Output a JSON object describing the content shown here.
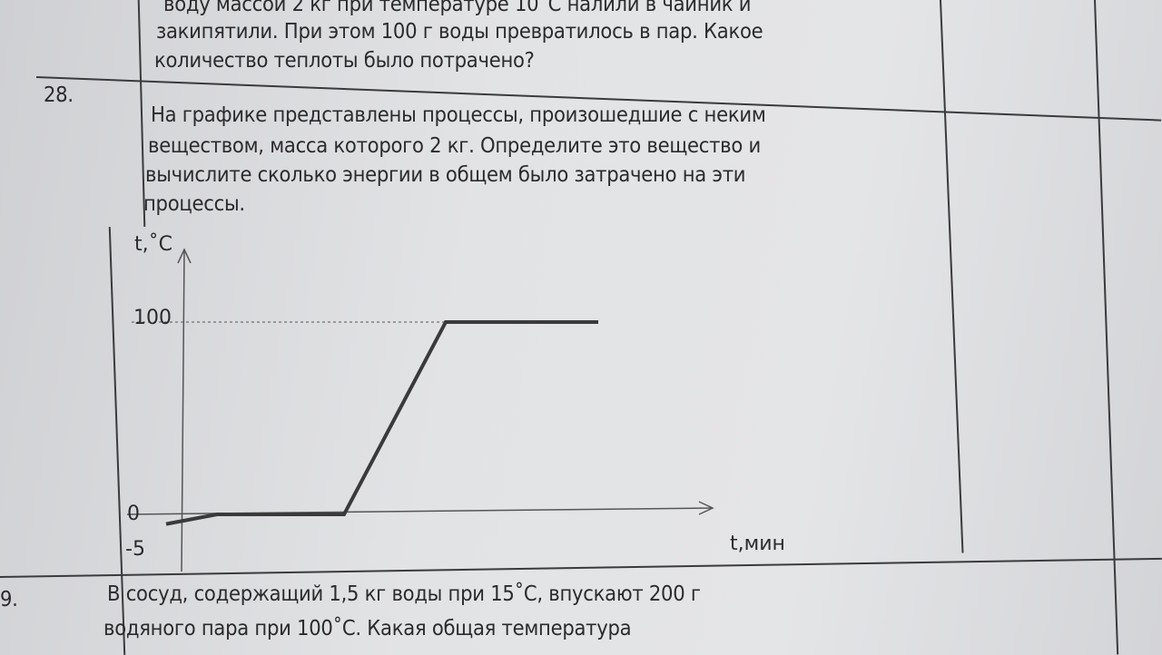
{
  "rows": [
    {
      "number": "",
      "lines": [
        "воду массой 2 кг при температуре 10˚С налили в чайник и",
        "закипятили. При этом 100 г воды превратилось в пар. Какое",
        "количество теплоты было потрачено?"
      ]
    },
    {
      "number": "28.",
      "lines": [
        "На графике представлены процессы, произошедшие с неким",
        "веществом, масса которого 2 кг. Определите это вещество и",
        "вычислите сколько энергии в общем было затрачено на эти",
        "процессы."
      ]
    },
    {
      "number": "9.",
      "lines": [
        "В сосуд, содержащий 1,5 кг воды при 15˚С, впускают 200 г",
        "водяного пара при 100˚С. Какая общая температура"
      ]
    }
  ],
  "chart_data": {
    "type": "line",
    "xlabel": "t,мин",
    "ylabel": "t,˚C",
    "y_ticks": [
      "100",
      "0",
      "-5"
    ],
    "points": [
      {
        "x": 0,
        "y": -5
      },
      {
        "x": 1,
        "y": 0
      },
      {
        "x": 3.5,
        "y": 0
      },
      {
        "x": 5.5,
        "y": 100
      },
      {
        "x": 8.5,
        "y": 100
      }
    ],
    "reference_line": {
      "y": 100,
      "style": "dashed"
    }
  }
}
